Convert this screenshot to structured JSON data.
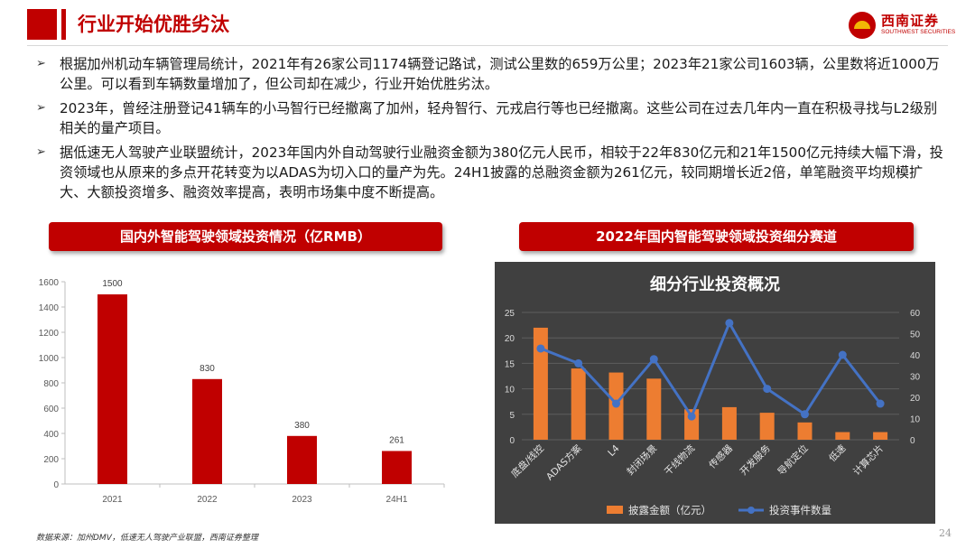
{
  "header": {
    "title": "行业开始优胜劣汰",
    "logo_cn": "西南证券",
    "logo_en": "SOUTHWEST SECURITIES"
  },
  "bullets": [
    "根据加州机动车辆管理局统计，2021年有26家公司1174辆登记路试，测试公里数的659万公里；2023年21家公司1603辆，公里数将近1000万公里。可以看到车辆数量增加了，但公司却在减少，行业开始优胜劣汰。",
    "2023年，曾经注册登记41辆车的小马智行已经撤离了加州，轻舟智行、元戎启行等也已经撤离。这些公司在过去几年内一直在积极寻找与L2级别相关的量产项目。",
    "据低速无人驾驶产业联盟统计，2023年国内外自动驾驶行业融资金额为380亿元人民币，相较于22年830亿元和21年1500亿元持续大幅下滑，投资领域也从原来的多点开花转变为以ADAS为切入口的量产为先。24H1披露的总融资金额为261亿元，较同期增长近2倍，单笔融资平均规模扩大、大额投资增多、融资效率提高，表明市场集中度不断提高。"
  ],
  "bullet_marker": "➢",
  "left_title": "国内外智能驾驶领域投资情况（亿RMB）",
  "right_title": "2022年国内智能驾驶领域投资细分赛道",
  "footer": {
    "source": "数据来源：加州DMV，低速无人驾驶产业联盟，西南证券整理",
    "page": "24"
  },
  "colors": {
    "accent": "#c00000",
    "bar_left": "#c00000",
    "bar_right": "#ed7d31",
    "line_right": "#4472c4",
    "panel_bg": "#404040"
  },
  "chart_data": [
    {
      "type": "bar",
      "title": "",
      "categories": [
        "2021",
        "2022",
        "2023",
        "24H1"
      ],
      "values": [
        1500,
        830,
        380,
        261
      ],
      "data_labels": [
        "1500",
        "830",
        "380",
        "261"
      ],
      "ylim": [
        0,
        1600
      ],
      "yticks": [
        0,
        200,
        400,
        600,
        800,
        1000,
        1200,
        1400,
        1600
      ],
      "grid": false,
      "legend": "none"
    },
    {
      "type": "bar+line",
      "title": "细分行业投资概况",
      "categories": [
        "底盘/线控",
        "ADAS方案",
        "L4",
        "封闭场景",
        "干线物流",
        "传感器",
        "开发服务",
        "导航定位",
        "低速",
        "计算芯片"
      ],
      "series": [
        {
          "name": "披露金额（亿元）",
          "type": "bar",
          "axis": "left",
          "values": [
            22,
            14,
            13.2,
            12,
            6,
            6.4,
            5.3,
            3.4,
            1.5,
            1.5
          ]
        },
        {
          "name": "投资事件数量",
          "type": "line",
          "axis": "right",
          "values": [
            43,
            36,
            17,
            38,
            11,
            55,
            24,
            12,
            40,
            17
          ]
        }
      ],
      "ylim_left": [
        0,
        25
      ],
      "yticks_left": [
        0,
        5,
        10,
        15,
        20,
        25
      ],
      "ylim_right": [
        0,
        60
      ],
      "yticks_right": [
        0,
        10,
        20,
        30,
        40,
        50,
        60
      ],
      "grid": true,
      "legend": "bottom"
    }
  ]
}
